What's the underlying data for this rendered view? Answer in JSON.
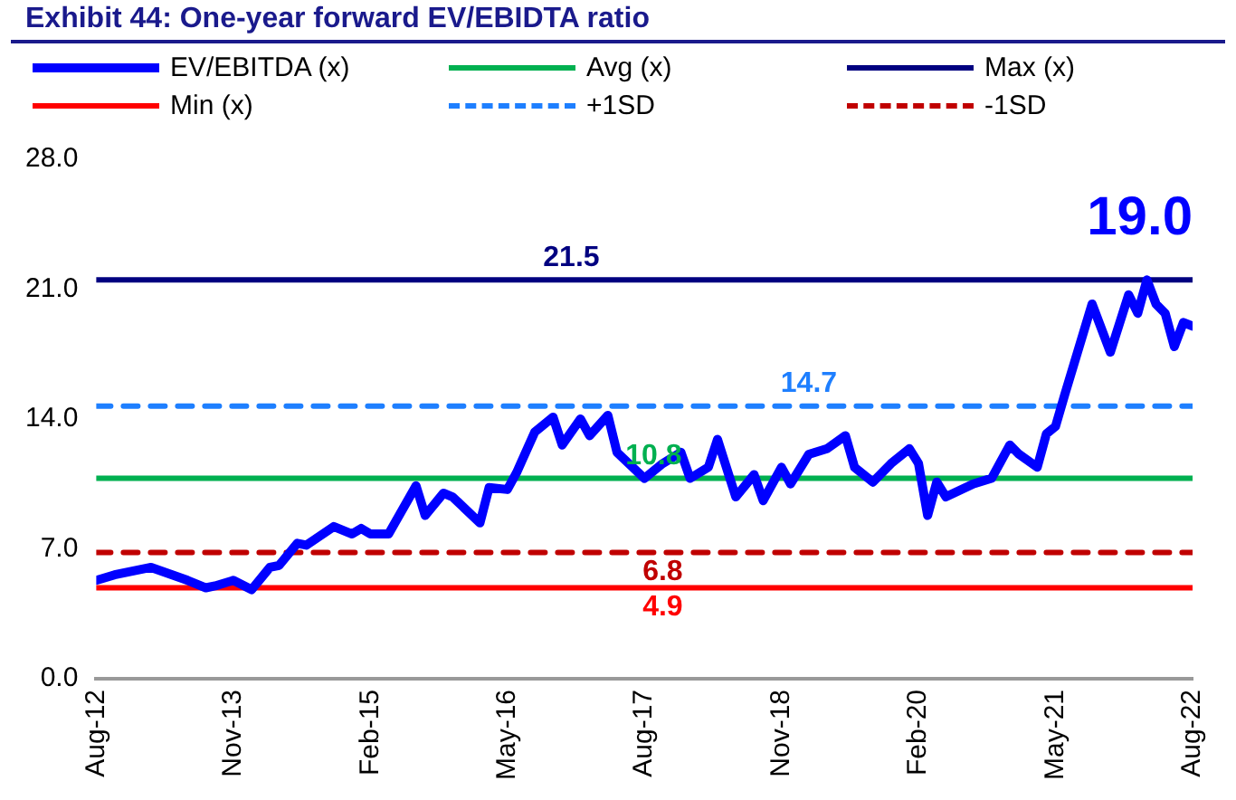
{
  "chart_data": {
    "type": "line",
    "title": "Exhibit 44: One-year forward EV/EBIDTA ratio",
    "x": [
      "2012-08",
      "2012-10",
      "2013-02",
      "2013-06",
      "2013-08",
      "2013-09",
      "2013-11",
      "2014-01",
      "2014-03",
      "2014-04",
      "2014-06",
      "2014-07",
      "2014-10",
      "2014-12",
      "2015-01",
      "2015-02",
      "2015-04",
      "2015-07",
      "2015-08",
      "2015-10",
      "2015-11",
      "2016-02",
      "2016-03",
      "2016-05",
      "2016-06",
      "2016-08",
      "2016-10",
      "2016-11",
      "2017-01",
      "2017-02",
      "2017-04",
      "2017-05",
      "2017-08",
      "2017-10",
      "2017-12",
      "2018-01",
      "2018-03",
      "2018-04",
      "2018-06",
      "2018-08",
      "2018-09",
      "2018-11",
      "2018-12",
      "2019-02",
      "2019-04",
      "2019-06",
      "2019-07",
      "2019-09",
      "2019-11",
      "2020-01",
      "2020-02",
      "2020-03",
      "2020-04",
      "2020-05",
      "2020-08",
      "2020-10",
      "2020-12",
      "2021-01",
      "2021-03",
      "2021-04",
      "2021-05",
      "2021-06",
      "2021-09",
      "2021-11",
      "2022-01",
      "2022-02",
      "2022-03",
      "2022-04",
      "2022-05",
      "2022-06",
      "2022-07",
      "2022-08"
    ],
    "series": [
      {
        "name": "EV/EBITDA (x)",
        "color": "#0000ff",
        "values": [
          5.3,
          5.6,
          6.0,
          5.3,
          4.9,
          5.0,
          5.3,
          4.8,
          6.0,
          6.1,
          7.3,
          7.2,
          8.2,
          7.8,
          8.1,
          7.8,
          7.8,
          10.4,
          8.8,
          10.0,
          9.8,
          8.4,
          10.3,
          10.2,
          11.1,
          13.3,
          14.1,
          12.6,
          14.0,
          13.1,
          14.2,
          12.2,
          10.8,
          11.6,
          12.2,
          10.8,
          11.4,
          12.9,
          9.8,
          11.0,
          9.6,
          11.4,
          10.5,
          12.1,
          12.4,
          13.1,
          11.4,
          10.6,
          11.6,
          12.4,
          11.6,
          8.8,
          10.6,
          9.8,
          10.5,
          10.8,
          12.6,
          12.1,
          11.4,
          13.2,
          13.6,
          15.3,
          20.2,
          17.6,
          20.7,
          19.7,
          21.5,
          20.2,
          19.7,
          17.9,
          19.2,
          19.0
        ]
      },
      {
        "name": "Avg (x)",
        "color": "#00b050",
        "x": [
          "2012-08",
          "2022-08"
        ],
        "values": [
          10.8,
          10.8
        ]
      },
      {
        "name": "Max (x)",
        "color": "#000080",
        "x": [
          "2012-08",
          "2022-08"
        ],
        "values": [
          21.5,
          21.5
        ]
      },
      {
        "name": "Min (x)",
        "color": "#ff0000",
        "x": [
          "2012-08",
          "2022-08"
        ],
        "values": [
          4.9,
          4.9
        ]
      },
      {
        "name": "+1SD",
        "color": "#1e7fff",
        "line_style": "dashed",
        "x": [
          "2012-08",
          "2022-08"
        ],
        "values": [
          14.7,
          14.7
        ]
      },
      {
        "name": "-1SD",
        "color": "#c00000",
        "line_style": "dashed",
        "x": [
          "2012-08",
          "2022-08"
        ],
        "values": [
          6.8,
          6.8
        ]
      }
    ],
    "annotations": [
      {
        "text": "21.5",
        "x": "2016-12",
        "y": 21.5
      },
      {
        "text": "10.8",
        "x": "2017-09",
        "y": 10.8
      },
      {
        "text": "14.7",
        "x": "2019-02",
        "y": 14.7
      },
      {
        "text": "6.8",
        "x": "2017-10",
        "y": 6.8
      },
      {
        "text": "4.9",
        "x": "2017-10",
        "y": 4.9
      },
      "19.0"
    ],
    "xlim": [
      "2012-08",
      "2022-08"
    ],
    "xticks": [
      {
        "value": "2012-08",
        "label": "Aug-12"
      },
      {
        "value": "2013-11",
        "label": "Nov-13"
      },
      {
        "value": "2015-02",
        "label": "Feb-15"
      },
      {
        "value": "2016-05",
        "label": "May-16"
      },
      {
        "value": "2017-08",
        "label": "Aug-17"
      },
      {
        "value": "2018-11",
        "label": "Nov-18"
      },
      {
        "value": "2020-02",
        "label": "Feb-20"
      },
      {
        "value": "2021-05",
        "label": "May-21"
      },
      {
        "value": "2022-08",
        "label": "Aug-22"
      }
    ],
    "ylim": [
      0,
      28
    ],
    "yticks": [
      {
        "value": 0,
        "label": "0.0"
      },
      {
        "value": 7,
        "label": "7.0"
      },
      {
        "value": 14,
        "label": "14.0"
      },
      {
        "value": 21,
        "label": "21.0"
      },
      {
        "value": 28,
        "label": "28.0"
      }
    ],
    "legend": "top",
    "marker": "none",
    "line_style": "solid"
  }
}
